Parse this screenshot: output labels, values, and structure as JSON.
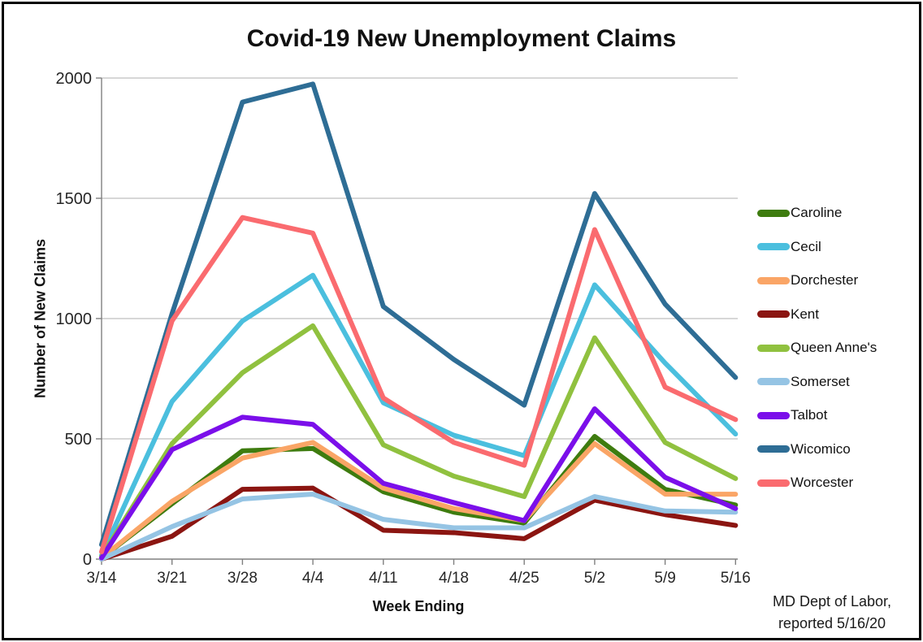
{
  "frame": {
    "border_color": "#000000",
    "background": "#ffffff"
  },
  "chart_data": {
    "type": "line",
    "title": "Covid-19 New Unemployment Claims",
    "xlabel": "Week Ending",
    "ylabel": "Number of New Claims",
    "categories": [
      "3/14",
      "3/21",
      "3/28",
      "4/4",
      "4/11",
      "4/18",
      "4/25",
      "5/2",
      "5/9",
      "5/16"
    ],
    "series": [
      {
        "name": "Caroline",
        "color": "#3E7C0F",
        "values": [
          5,
          230,
          450,
          460,
          280,
          195,
          150,
          510,
          290,
          225
        ]
      },
      {
        "name": "Cecil",
        "color": "#4BBFDE",
        "values": [
          15,
          655,
          990,
          1180,
          650,
          515,
          430,
          1140,
          815,
          520
        ]
      },
      {
        "name": "Dorchester",
        "color": "#FAA566",
        "values": [
          5,
          240,
          420,
          485,
          295,
          210,
          160,
          480,
          270,
          270
        ]
      },
      {
        "name": "Kent",
        "color": "#8B1511",
        "values": [
          0,
          95,
          290,
          295,
          120,
          110,
          85,
          245,
          185,
          140
        ]
      },
      {
        "name": "Queen Anne's",
        "color": "#90C13F",
        "values": [
          10,
          480,
          775,
          970,
          475,
          345,
          260,
          920,
          485,
          335
        ]
      },
      {
        "name": "Somerset",
        "color": "#95C4E4",
        "values": [
          0,
          135,
          250,
          270,
          165,
          130,
          130,
          260,
          200,
          195
        ]
      },
      {
        "name": "Talbot",
        "color": "#7B0FEA",
        "values": [
          5,
          455,
          590,
          560,
          315,
          235,
          160,
          625,
          340,
          210
        ]
      },
      {
        "name": "Wicomico",
        "color": "#2E6D95",
        "values": [
          60,
          1020,
          1900,
          1975,
          1050,
          830,
          640,
          1520,
          1060,
          755
        ]
      },
      {
        "name": "Worcester",
        "color": "#FA6B6F",
        "values": [
          30,
          990,
          1420,
          1355,
          670,
          485,
          390,
          1370,
          715,
          580
        ]
      }
    ],
    "ylim": [
      0,
      2000
    ],
    "yticks": [
      0,
      500,
      1000,
      1500,
      2000
    ],
    "grid": "horizontal-only",
    "gridline_color": "#BFBFBF",
    "axis_color": "#808080",
    "tick_label_color": "#262626",
    "legend_position": "right",
    "line_width": 6
  },
  "source_note": {
    "line1": "MD Dept of Labor,",
    "line2": "reported 5/16/20"
  }
}
